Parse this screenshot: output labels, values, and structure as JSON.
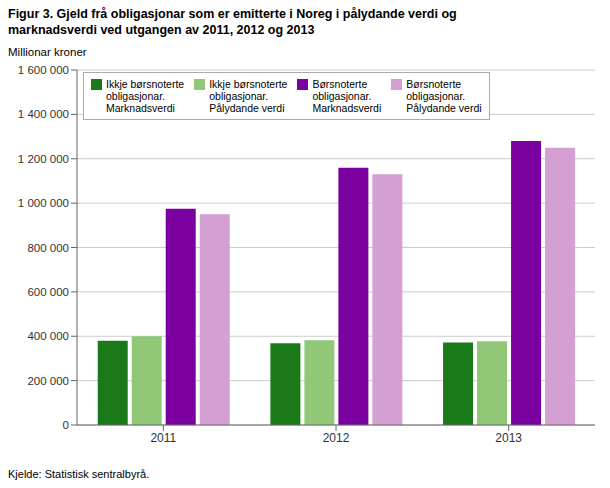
{
  "chart_data": {
    "type": "bar",
    "title": "Figur 3. Gjeld frå obligasjonar som er emitterte i Noreg i pålydande verdi og\nmarknadsverdi ved utgangen av 2011, 2012 og 2013",
    "ylabel": "Millionar kroner",
    "annotations": [
      "Kjelde: Statistisk sentralbyrå."
    ],
    "categories": [
      "2011",
      "2012",
      "2013"
    ],
    "series": [
      {
        "name": "Ikkje børsnoterte\nobligasjonar.\nMarknadsverdi",
        "color": "#1a7a1a",
        "values": [
          380000,
          368000,
          372000
        ]
      },
      {
        "name": "Ikkje børsnoterte\nobligasjonar.\nPålydande verdi",
        "color": "#90c878",
        "values": [
          400000,
          382000,
          378000
        ]
      },
      {
        "name": "Børsnoterte\nobligasjonar.\nMarknadsverdi",
        "color": "#7b00a0",
        "values": [
          975000,
          1160000,
          1280000
        ]
      },
      {
        "name": "Børsnoterte\nobligasjonar.\nPålydande verdi",
        "color": "#d4a0d4",
        "values": [
          950000,
          1130000,
          1250000
        ]
      }
    ],
    "ylim": [
      0,
      1600000
    ],
    "yticks": [
      0,
      {
        "value": 200000,
        "label": "200 000"
      },
      {
        "value": 400000,
        "label": "400 000"
      },
      {
        "value": 600000,
        "label": "600 000"
      },
      {
        "value": 800000,
        "label": "800 000"
      },
      {
        "value": 1000000,
        "label": "1 000 000"
      },
      {
        "value": 1200000,
        "label": "1 200 000"
      },
      {
        "value": 1400000,
        "label": "1 400 000"
      },
      {
        "value": 1600000,
        "label": "1 600 000"
      }
    ],
    "grid": true,
    "legend": "upper left"
  }
}
